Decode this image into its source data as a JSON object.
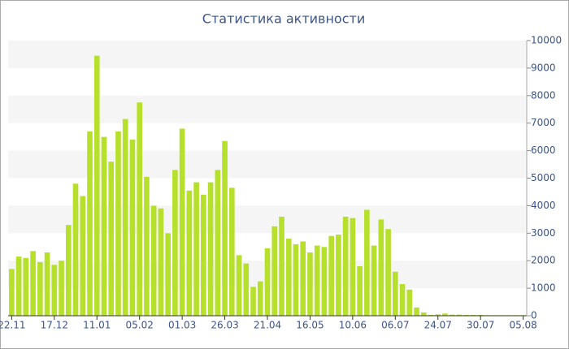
{
  "chart_data": {
    "type": "bar",
    "title": "Статистика активности",
    "categories": [
      "22.11",
      null,
      null,
      null,
      null,
      null,
      "17.12",
      null,
      null,
      null,
      null,
      null,
      "11.01",
      null,
      null,
      null,
      null,
      null,
      "05.02",
      null,
      null,
      null,
      null,
      null,
      "01.03",
      null,
      null,
      null,
      null,
      null,
      "26.03",
      null,
      null,
      null,
      null,
      null,
      "21.04",
      null,
      null,
      null,
      null,
      null,
      "16.05",
      null,
      null,
      null,
      null,
      null,
      "10.06",
      null,
      null,
      null,
      null,
      null,
      "06.07",
      null,
      null,
      null,
      null,
      null,
      "24.07",
      null,
      null,
      null,
      null,
      null,
      "30.07",
      null,
      null,
      null,
      null,
      null,
      "05.08"
    ],
    "values": [
      1700,
      2150,
      2100,
      2350,
      1950,
      2300,
      1850,
      2000,
      3300,
      4800,
      4350,
      6700,
      9450,
      6500,
      5600,
      6700,
      7150,
      6400,
      7750,
      5050,
      4000,
      3900,
      3000,
      5300,
      6800,
      4550,
      4850,
      4400,
      4850,
      5300,
      6350,
      4650,
      2200,
      1900,
      1050,
      1250,
      2450,
      3250,
      3600,
      2800,
      2600,
      2700,
      2300,
      2550,
      2500,
      2900,
      2950,
      3600,
      3550,
      1800,
      3850,
      2550,
      3500,
      3150,
      1600,
      1150,
      950,
      300,
      120,
      30,
      50,
      80,
      40,
      40,
      30,
      30,
      30,
      20,
      20,
      20,
      20,
      20,
      20
    ],
    "color": "#b6e02c",
    "ylim": [
      0,
      10000
    ],
    "yticks": [
      0,
      1000,
      2000,
      3000,
      4000,
      5000,
      6000,
      7000,
      8000,
      9000,
      10000
    ],
    "grid": true,
    "y_axis_side": "right"
  }
}
